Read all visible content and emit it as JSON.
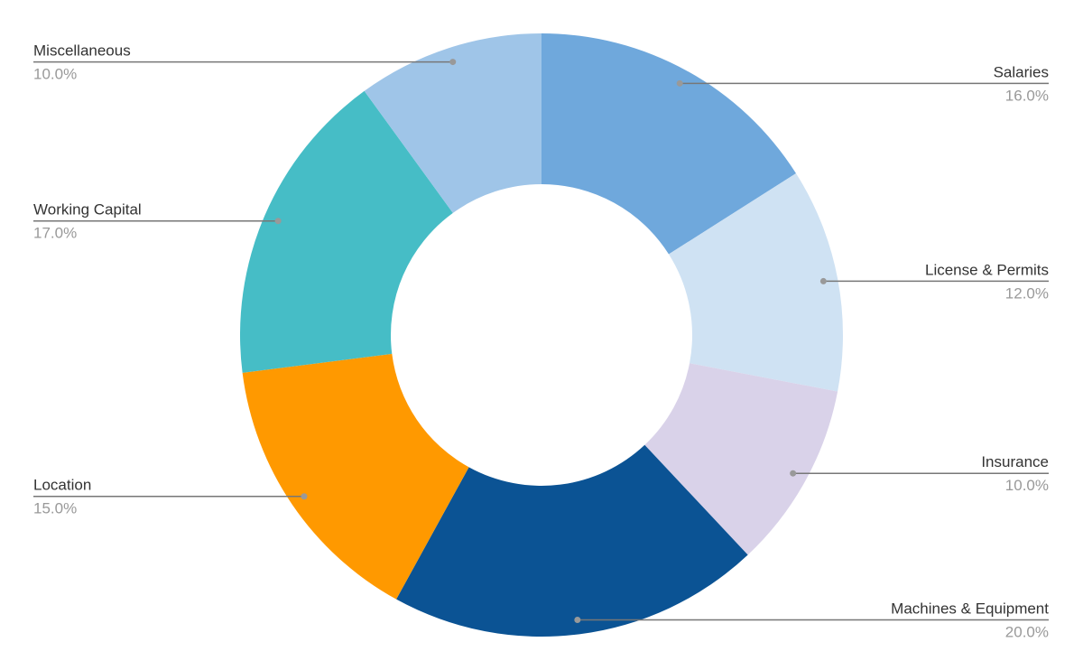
{
  "chart_data": {
    "type": "donut",
    "categories": [
      "Salaries",
      "License & Permits",
      "Insurance",
      "Machines & Equipment",
      "Location",
      "Working Capital",
      "Miscellaneous"
    ],
    "values": [
      16,
      12,
      10,
      20,
      15,
      17,
      10
    ],
    "value_labels": [
      "16.0%",
      "12.0%",
      "10.0%",
      "20.0%",
      "15.0%",
      "17.0%",
      "10.0%"
    ],
    "colors": [
      "#6fa8dc",
      "#cfe2f3",
      "#d9d2e9",
      "#0b5394",
      "#ff9900",
      "#46bdc6",
      "#9fc5e8"
    ]
  }
}
